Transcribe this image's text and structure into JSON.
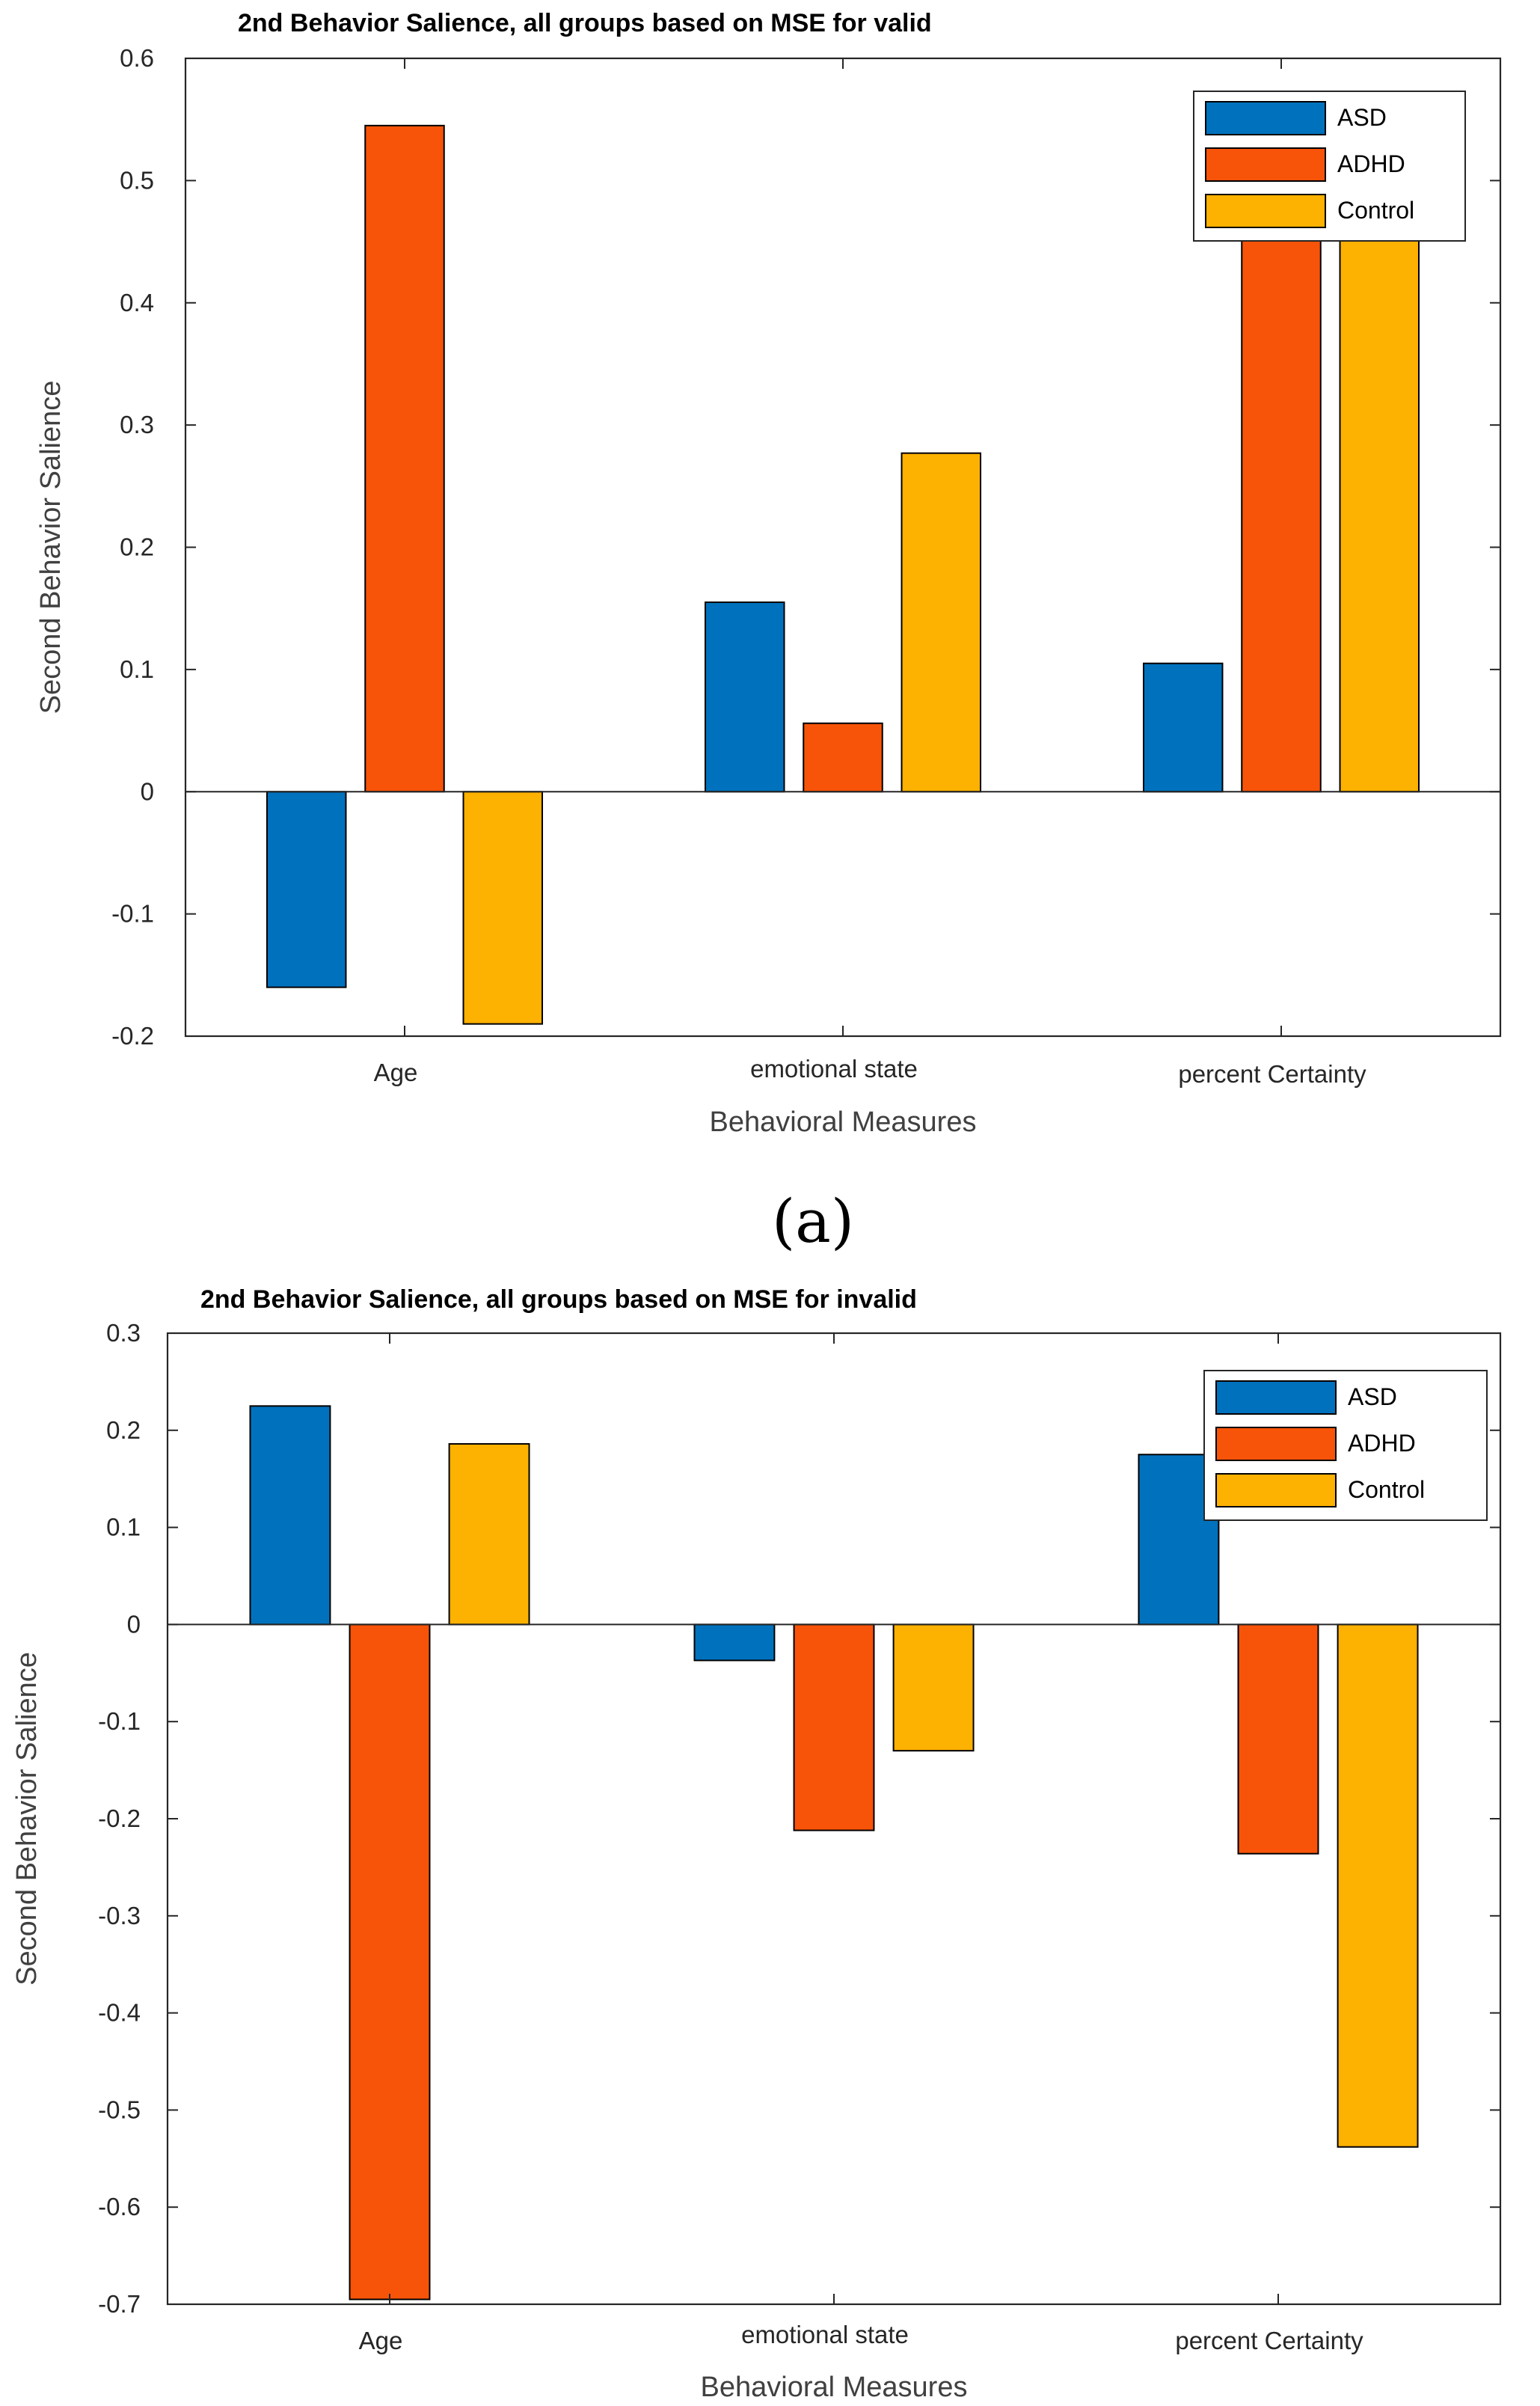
{
  "chart_data": [
    {
      "type": "bar",
      "title": "2nd Behavior Salience, all groups based on MSE for valid",
      "xlabel": "Behavioral Measures",
      "ylabel": "Second Behavior Salience",
      "categories": [
        "Age",
        "emotional state",
        "percent Certainty"
      ],
      "series": [
        {
          "name": "ASD",
          "values": [
            -0.16,
            0.155,
            0.105
          ]
        },
        {
          "name": "ADHD",
          "values": [
            0.545,
            0.056,
            0.51
          ]
        },
        {
          "name": "Control",
          "values": [
            -0.19,
            0.277,
            0.5
          ]
        }
      ],
      "ylim": [
        -0.2,
        0.6
      ],
      "yticks": [
        "-0.2",
        "-0.1",
        "0",
        "0.1",
        "0.2",
        "0.3",
        "0.4",
        "0.5",
        "0.6"
      ],
      "legend": "top-right",
      "grid": false,
      "caption": "(a)"
    },
    {
      "type": "bar",
      "title": "2nd Behavior Salience, all groups based on MSE for invalid",
      "xlabel": "Behavioral Measures",
      "ylabel": "Second Behavior Salience",
      "categories": [
        "Age",
        "emotional state",
        "percent Certainty"
      ],
      "series": [
        {
          "name": "ASD",
          "values": [
            0.225,
            -0.037,
            0.175
          ]
        },
        {
          "name": "ADHD",
          "values": [
            -0.695,
            -0.212,
            -0.236
          ]
        },
        {
          "name": "Control",
          "values": [
            0.186,
            -0.13,
            -0.538
          ]
        }
      ],
      "ylim": [
        -0.7,
        0.3
      ],
      "yticks": [
        "-0.7",
        "-0.6",
        "-0.5",
        "-0.4",
        "-0.3",
        "-0.2",
        "-0.1",
        "0",
        "0.1",
        "0.2",
        "0.3"
      ],
      "legend": "top-right",
      "grid": false
    }
  ],
  "colors": {
    "ASD": "#0072BD",
    "ADHD": "#F75409",
    "Control": "#FDB100"
  }
}
